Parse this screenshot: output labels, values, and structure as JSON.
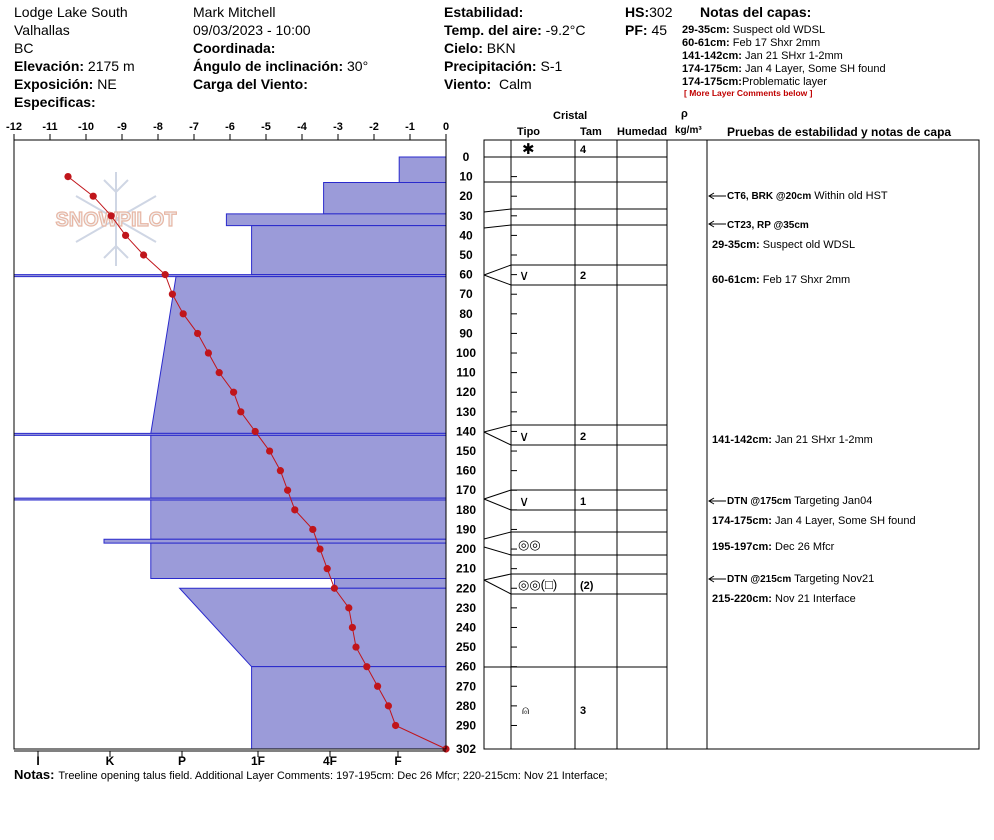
{
  "header": {
    "location": "Lodge Lake South",
    "area": "Valhallas",
    "province": "BC",
    "elevation_label": "Elevación:",
    "elevation_value": "2175 m",
    "aspect_label": "Exposición:",
    "aspect_value": "NE",
    "specifics_label": "Especificas:",
    "observer": "Mark Mitchell",
    "datetime": "09/03/2023 - 10:00",
    "coord_label": "Coordinada:",
    "slope_label": "Ángulo de inclinación:",
    "slope_value": "30°",
    "wind_load_label": "Carga del Viento:",
    "stability_label": "Estabilidad:",
    "air_temp_label": "Temp. del aire:",
    "air_temp_value": "-9.2°C",
    "sky_label": "Cielo:",
    "sky_value": "BKN",
    "precip_label": "Precipitación:",
    "precip_value": "S-1",
    "wind_label": "Viento:",
    "wind_value": "Calm",
    "hs_label": "HS:",
    "hs_value": "302",
    "pf_label": "PF:",
    "pf_value": "45",
    "layer_notes_title": "Notas del capas:",
    "layer_notes": [
      {
        "depth": "29-35cm:",
        "text": "Suspect old WDSL"
      },
      {
        "depth": "60-61cm:",
        "text": "Feb 17 Shxr 2mm"
      },
      {
        "depth": "141-142cm:",
        "text": "Jan 21 SHxr 1-2mm"
      },
      {
        "depth": "174-175cm:",
        "text": "Jan 4 Layer, Some SH found"
      },
      {
        "depth": "174-175cm:",
        "text": "Problematic layer"
      }
    ],
    "more_comments": "[ More Layer Comments below ]"
  },
  "watermark": "SNOWPILOT",
  "table_headers": {
    "crystal": "Cristal",
    "type": "Tipo",
    "size": "Tam",
    "moisture": "Humedad",
    "rho": "ρ",
    "density_unit": "kg/m³",
    "tests": "Pruebas de estabilidad y notas de capa"
  },
  "layers": [
    {
      "symbol": "✱",
      "size": "4"
    },
    {
      "symbol": "∨",
      "size": "2"
    },
    {
      "symbol": "∨",
      "size": "2"
    },
    {
      "symbol": "∨",
      "size": "1"
    },
    {
      "symbol": "◎◎",
      "size": ""
    },
    {
      "symbol": "◎◎(□)",
      "size": "(2)"
    },
    {
      "symbol": "⍝",
      "size": "3"
    }
  ],
  "tests": [
    {
      "name": "CT6, BRK @20cm",
      "text": "Within old HST"
    },
    {
      "name": "CT23, RP @35cm",
      "text": ""
    },
    {
      "name": "DTN @175cm",
      "text": "Targeting Jan04"
    },
    {
      "name": "DTN @215cm",
      "text": "Targeting Nov21"
    }
  ],
  "layer_comments": [
    {
      "depth": "29-35cm:",
      "text": "Suspect old WDSL"
    },
    {
      "depth": "60-61cm:",
      "text": "Feb 17 Shxr 2mm"
    },
    {
      "depth": "141-142cm:",
      "text": "Jan 21 SHxr 1-2mm"
    },
    {
      "depth": "174-175cm:",
      "text": "Jan 4 Layer, Some SH found"
    },
    {
      "depth": "195-197cm:",
      "text": "Dec 26 Mfcr"
    },
    {
      "depth": "215-220cm:",
      "text": "Nov 21 Interface"
    }
  ],
  "notes_label": "Notas:",
  "notes_text": "Treeline opening talus field. Additional Layer Comments: 197-195cm: Dec 26 Mfcr; 220-215cm: Nov 21 Interface;",
  "colors": {
    "hardness_fill": "#9b9bd9",
    "hardness_stroke": "#2a2acc",
    "temperature": "#c0151b"
  },
  "chart_data": {
    "type": "area",
    "temp_axis_ticks": [
      "-12",
      "-11",
      "-10",
      "-9",
      "-8",
      "-7",
      "-6",
      "-5",
      "-4",
      "-3",
      "-2",
      "-1",
      "0"
    ],
    "temp_range": [
      -12,
      0
    ],
    "depth_ticks": [
      "0",
      "10",
      "20",
      "30",
      "40",
      "50",
      "60",
      "70",
      "80",
      "90",
      "100",
      "110",
      "120",
      "130",
      "140",
      "150",
      "160",
      "170",
      "180",
      "190",
      "200",
      "210",
      "220",
      "230",
      "240",
      "250",
      "260",
      "270",
      "280",
      "290",
      "302"
    ],
    "depth_range": [
      0,
      302
    ],
    "hardness_labels": [
      "I",
      "K",
      "P",
      "1F",
      "4F",
      "F"
    ],
    "hardness_scale_note": "hardness values in units of temperature axis (0 at right edge)",
    "hardness_profile": [
      {
        "top": 0,
        "bottom": 13,
        "hardness": -1.3
      },
      {
        "top": 13,
        "bottom": 29,
        "hardness": -3.4
      },
      {
        "top": 29,
        "bottom": 35,
        "hardness": -6.1
      },
      {
        "top": 35,
        "bottom": 60,
        "hardness": -5.4
      },
      {
        "top": 60,
        "bottom": 61,
        "hardness": -12.0
      },
      {
        "top": 61,
        "bottom": 141,
        "hardness_top": -7.5,
        "hardness_bottom": -8.2
      },
      {
        "top": 141,
        "bottom": 142,
        "hardness": -12.0
      },
      {
        "top": 142,
        "bottom": 174,
        "hardness": -8.2
      },
      {
        "top": 174,
        "bottom": 175,
        "hardness": -12.0
      },
      {
        "top": 175,
        "bottom": 195,
        "hardness": -8.2
      },
      {
        "top": 195,
        "bottom": 197,
        "hardness": -9.5
      },
      {
        "top": 197,
        "bottom": 215,
        "hardness": -8.2
      },
      {
        "top": 215,
        "bottom": 220,
        "hardness": -3.1
      },
      {
        "top": 220,
        "bottom": 260,
        "hardness_top": -7.4,
        "hardness_bottom": -5.4
      },
      {
        "top": 260,
        "bottom": 302,
        "hardness": -5.4
      }
    ],
    "temperature_profile": {
      "depth": [
        10,
        20,
        30,
        40,
        50,
        60,
        70,
        80,
        90,
        100,
        110,
        120,
        130,
        140,
        150,
        160,
        170,
        180,
        190,
        200,
        210,
        220,
        230,
        240,
        250,
        260,
        270,
        280,
        290,
        302
      ],
      "temp": [
        -10.5,
        -9.8,
        -9.3,
        -8.9,
        -8.4,
        -7.8,
        -7.6,
        -7.3,
        -6.9,
        -6.6,
        -6.3,
        -5.9,
        -5.7,
        -5.3,
        -4.9,
        -4.6,
        -4.4,
        -4.2,
        -3.7,
        -3.5,
        -3.3,
        -3.1,
        -2.7,
        -2.6,
        -2.5,
        -2.2,
        -1.9,
        -1.6,
        -1.4,
        0.0
      ]
    },
    "grid": false,
    "legend": "none"
  }
}
